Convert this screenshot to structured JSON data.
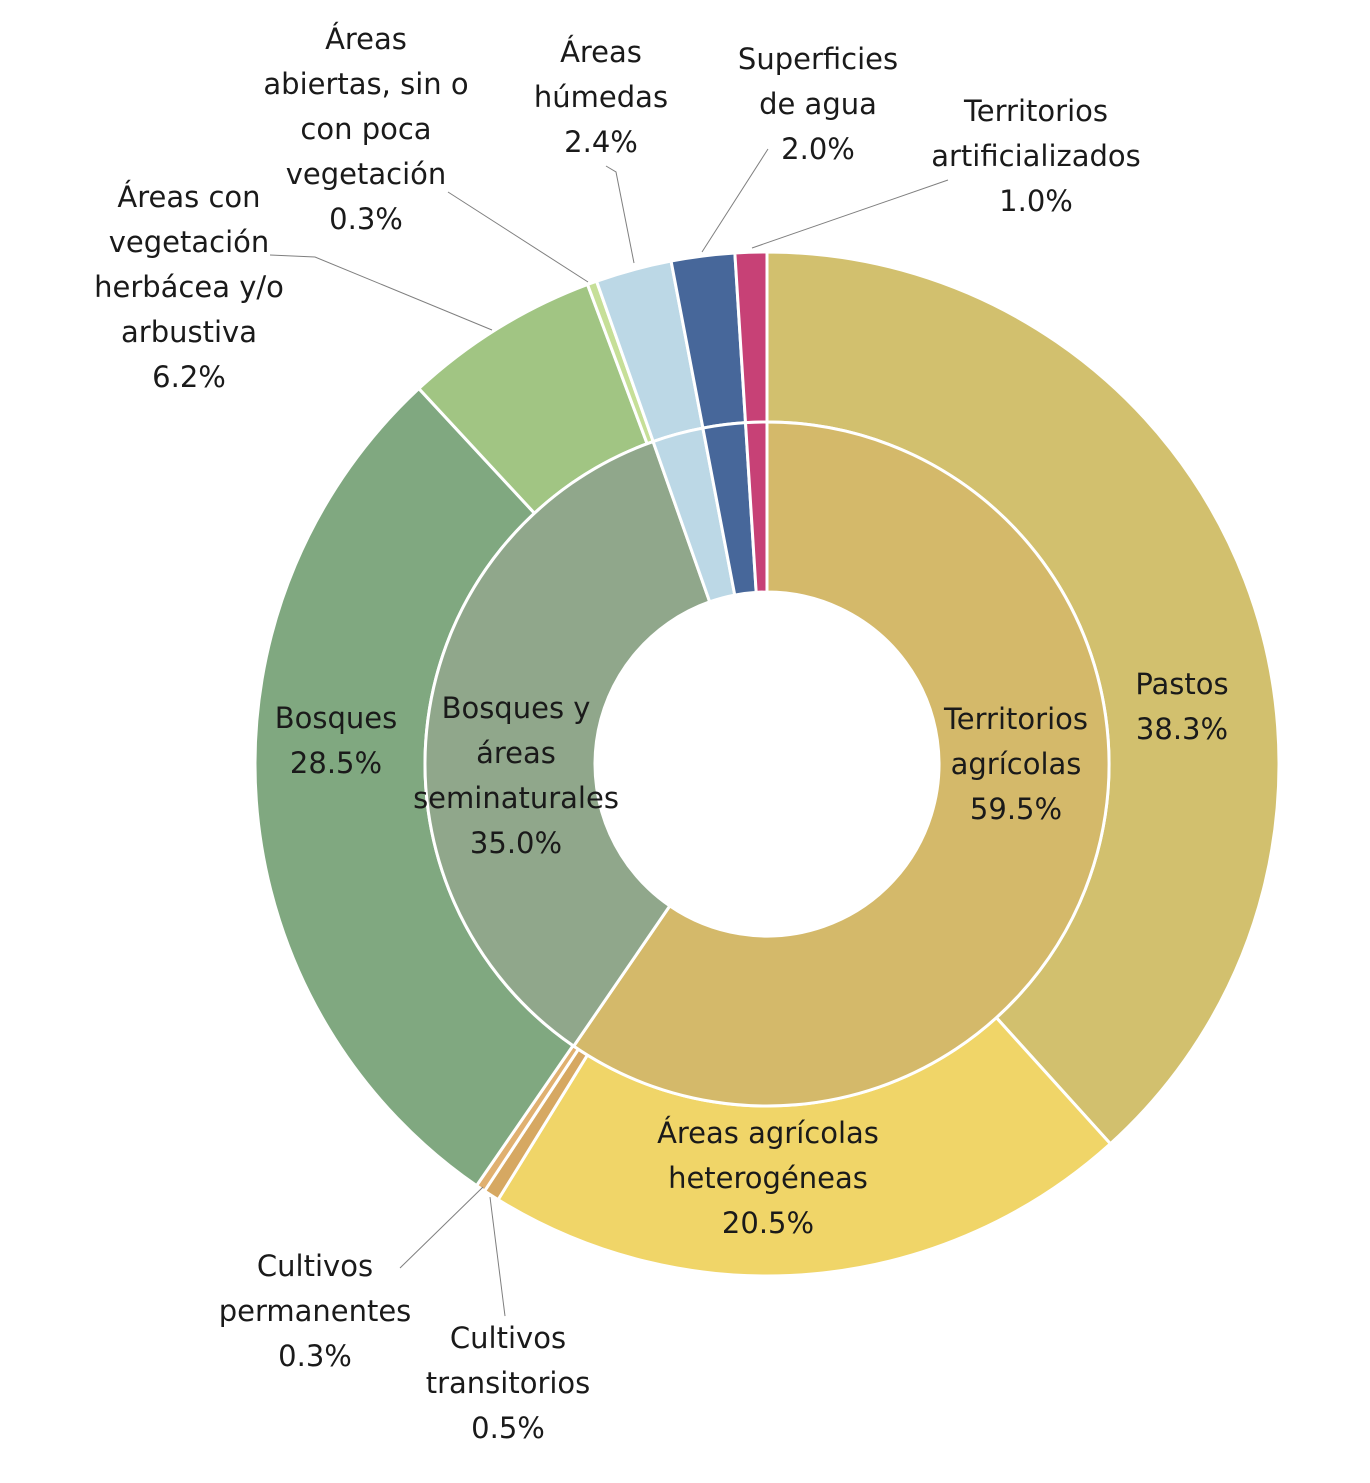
{
  "chart_data": {
    "type": "pie",
    "subtype": "double-donut",
    "inner_ring": [
      {
        "label": "Territorios agrícolas",
        "value": 59.5,
        "value_label": "59.5%",
        "color": "#d4b96a"
      },
      {
        "label": "Bosques y áreas seminaturales",
        "value": 35.0,
        "value_label": "35.0%",
        "color": "#90a78b"
      },
      {
        "label": "Áreas húmedas",
        "value": 2.4,
        "value_label": "",
        "color": "#bcd8e6"
      },
      {
        "label": "Superficies de agua",
        "value": 2.0,
        "value_label": "",
        "color": "#47679a"
      },
      {
        "label": "Territorios artificializados",
        "value": 1.0,
        "value_label": "",
        "color": "#c74176"
      }
    ],
    "outer_ring": [
      {
        "label": "Pastos",
        "value": 38.3,
        "value_label": "38.3%",
        "color": "#d2c06e"
      },
      {
        "label": "Áreas agrícolas heterogéneas",
        "value": 20.5,
        "value_label": "20.5%",
        "color": "#f0d568"
      },
      {
        "label": "Cultivos transitorios",
        "value": 0.5,
        "value_label": "0.5%",
        "color": "#d6a862"
      },
      {
        "label": "Cultivos permanentes",
        "value": 0.3,
        "value_label": "0.3%",
        "color": "#e0b070"
      },
      {
        "label": "Bosques",
        "value": 28.5,
        "value_label": "28.5%",
        "color": "#80a880"
      },
      {
        "label": "Áreas con vegetación herbácea y/o arbustiva",
        "value": 6.2,
        "value_label": "6.2%",
        "color": "#a1c583"
      },
      {
        "label": "Áreas abiertas, sin o con poca vegetación",
        "value": 0.3,
        "value_label": "0.3%",
        "color": "#c6df98"
      },
      {
        "label": "Áreas húmedas",
        "value": 2.4,
        "value_label": "2.4%",
        "color": "#bcd8e6"
      },
      {
        "label": "Superficies de agua",
        "value": 2.0,
        "value_label": "2.0%",
        "color": "#47679a"
      },
      {
        "label": "Territorios artificializados",
        "value": 1.0,
        "value_label": "1.0%",
        "color": "#c74176"
      }
    ]
  }
}
